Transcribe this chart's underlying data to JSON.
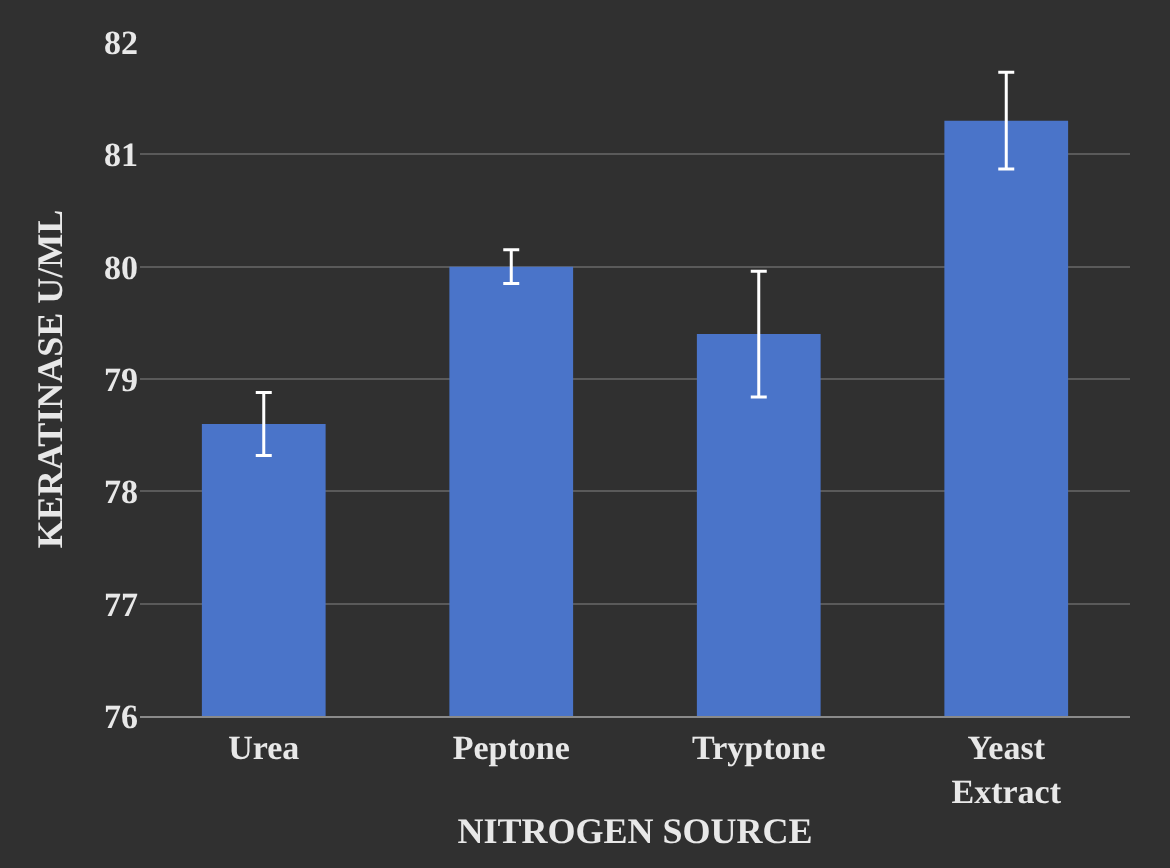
{
  "chart_data": {
    "type": "bar",
    "categories": [
      "Urea",
      "Peptone",
      "Tryptone",
      "Yeast Extract"
    ],
    "values": [
      78.6,
      80.0,
      79.4,
      81.3
    ],
    "errors": [
      0.28,
      0.15,
      0.56,
      0.43
    ],
    "color": "#4a74c9",
    "xlabel": "NITROGEN SOURCE",
    "ylabel": "KERATINASE U/ML",
    "ylim": [
      76,
      82
    ],
    "yticks": [
      76,
      77,
      78,
      79,
      80,
      81,
      82
    ],
    "grid": "y"
  }
}
